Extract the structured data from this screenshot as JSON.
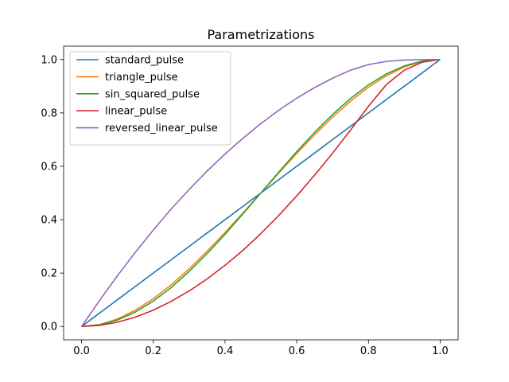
{
  "chart_data": {
    "type": "line",
    "title": "Parametrizations",
    "xlabel": "",
    "ylabel": "",
    "xlim": [
      -0.05,
      1.05
    ],
    "ylim": [
      -0.05,
      1.05
    ],
    "x_ticks": [
      0.0,
      0.2,
      0.4,
      0.6,
      0.8,
      1.0
    ],
    "x_tick_labels": [
      "0.0",
      "0.2",
      "0.4",
      "0.6",
      "0.8",
      "1.0"
    ],
    "y_ticks": [
      0.0,
      0.2,
      0.4,
      0.6,
      0.8,
      1.0
    ],
    "y_tick_labels": [
      "0.0",
      "0.2",
      "0.4",
      "0.6",
      "0.8",
      "1.0"
    ],
    "grid": false,
    "legend_position": "top-left",
    "x": [
      0.0,
      0.05,
      0.1,
      0.15,
      0.2,
      0.25,
      0.3,
      0.35,
      0.4,
      0.45,
      0.5,
      0.55,
      0.6,
      0.65,
      0.7,
      0.75,
      0.8,
      0.85,
      0.9,
      0.95,
      1.0
    ],
    "series": [
      {
        "name": "standard_pulse",
        "color": "#1f77b4",
        "values": [
          0.0,
          0.05,
          0.1,
          0.15,
          0.2,
          0.25,
          0.3,
          0.35,
          0.4,
          0.45,
          0.5,
          0.55,
          0.6,
          0.65,
          0.7,
          0.75,
          0.8,
          0.85,
          0.9,
          0.95,
          1.0
        ]
      },
      {
        "name": "triangle_pulse",
        "color": "#ff7f0e",
        "values": [
          0.0,
          0.007,
          0.028,
          0.061,
          0.104,
          0.156,
          0.216,
          0.282,
          0.352,
          0.425,
          0.5,
          0.575,
          0.648,
          0.718,
          0.784,
          0.844,
          0.896,
          0.939,
          0.972,
          0.993,
          1.0
        ]
      },
      {
        "name": "sin_squared_pulse",
        "color": "#2ca02c",
        "values": [
          0.0,
          0.006,
          0.024,
          0.054,
          0.095,
          0.146,
          0.206,
          0.273,
          0.345,
          0.422,
          0.5,
          0.578,
          0.655,
          0.727,
          0.794,
          0.854,
          0.905,
          0.946,
          0.976,
          0.994,
          1.0
        ]
      },
      {
        "name": "linear_pulse",
        "color": "#d62728",
        "values": [
          0.0,
          0.004,
          0.016,
          0.035,
          0.061,
          0.094,
          0.133,
          0.178,
          0.229,
          0.285,
          0.348,
          0.416,
          0.489,
          0.567,
          0.649,
          0.736,
          0.825,
          0.906,
          0.96,
          0.99,
          1.0
        ]
      },
      {
        "name": "reversed_linear_pulse",
        "color": "#9467bd",
        "values": [
          0.0,
          0.097,
          0.19,
          0.278,
          0.361,
          0.44,
          0.513,
          0.582,
          0.646,
          0.705,
          0.76,
          0.81,
          0.855,
          0.895,
          0.93,
          0.96,
          0.981,
          0.993,
          0.998,
          0.9995,
          1.0
        ]
      }
    ]
  }
}
